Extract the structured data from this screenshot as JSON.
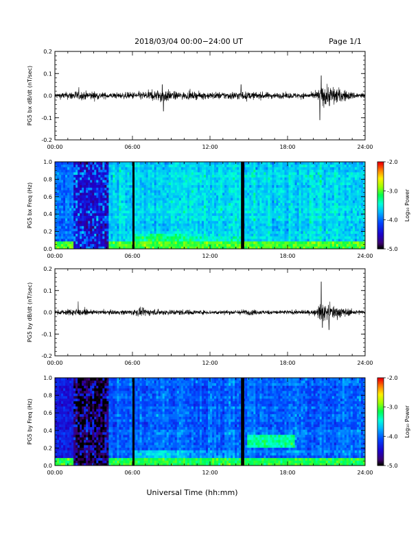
{
  "header": {
    "title": "2018/03/04  00:00−24:00 UT",
    "page_label": "Page 1/1"
  },
  "footer": {
    "xlabel": "Universal Time (hh:mm)"
  },
  "time_ticks": [
    "00:00",
    "06:00",
    "12:00",
    "18:00",
    "24:00"
  ],
  "colorbar": {
    "label": "Log₁₀ Power",
    "tick_labels": [
      "-2.0",
      "-3.0",
      "-4.0",
      "-5.0"
    ],
    "tick_values": [
      -2.0,
      -3.0,
      -4.0,
      -5.0
    ],
    "range": [
      -5.0,
      -2.0
    ]
  },
  "chart_data": [
    {
      "type": "line",
      "ylabel": "PG5 bx dB/dt (nT/sec)",
      "xlim": [
        0,
        24
      ],
      "ylim": [
        -0.2,
        0.2
      ],
      "ytick_labels": [
        "0.2",
        "0.1",
        "0.0",
        "-0.1",
        "-0.2"
      ],
      "ytick_values": [
        0.2,
        0.1,
        0.0,
        -0.1,
        -0.2
      ],
      "envelope": {
        "hours": [
          0,
          1,
          1.5,
          2,
          3,
          4,
          5,
          6,
          7,
          8,
          8.5,
          9,
          10,
          11,
          12,
          13,
          14,
          14.5,
          15,
          16,
          17,
          18,
          19,
          20,
          20.5,
          21,
          21.5,
          22,
          23,
          24
        ],
        "amplitude": [
          0.02,
          0.025,
          0.035,
          0.03,
          0.03,
          0.02,
          0.02,
          0.025,
          0.03,
          0.04,
          0.05,
          0.03,
          0.025,
          0.025,
          0.025,
          0.025,
          0.03,
          0.03,
          0.025,
          0.025,
          0.02,
          0.02,
          0.02,
          0.02,
          0.05,
          0.08,
          0.07,
          0.05,
          0.025,
          0.02
        ]
      },
      "peaks": [
        {
          "hour": 20.6,
          "value": 0.09
        },
        {
          "hour": 20.5,
          "value": -0.11
        },
        {
          "hour": 8.3,
          "value": 0.05
        },
        {
          "hour": 8.4,
          "value": -0.07
        },
        {
          "hour": 14.4,
          "value": 0.05
        }
      ]
    },
    {
      "type": "heatmap",
      "ylabel": "PG5 bx Freq (Hz)",
      "xlim": [
        0,
        24
      ],
      "ylim": [
        0.0,
        1.0
      ],
      "ytick_labels": [
        "1.0",
        "0.8",
        "0.6",
        "0.4",
        "0.2",
        "0.0"
      ],
      "ytick_values": [
        1.0,
        0.8,
        0.6,
        0.4,
        0.2,
        0.0
      ],
      "zlabel": "Log₁₀ Power",
      "zlim": [
        -5.0,
        -2.0
      ],
      "data_gaps_hours": [
        [
          6.0,
          6.15
        ],
        [
          14.4,
          14.65
        ]
      ],
      "quiet_interval_hours": [
        1.5,
        4.1
      ],
      "background_level": -3.6,
      "low_freq_enhancement": -3.0
    },
    {
      "type": "line",
      "ylabel": "PG5 by dB/dt (nT/sec)",
      "xlim": [
        0,
        24
      ],
      "ylim": [
        -0.2,
        0.2
      ],
      "ytick_labels": [
        "0.2",
        "0.1",
        "0.0",
        "-0.1",
        "-0.2"
      ],
      "ytick_values": [
        0.2,
        0.1,
        0.0,
        -0.1,
        -0.2
      ],
      "envelope": {
        "hours": [
          0,
          1,
          1.5,
          2,
          3,
          4,
          5,
          6,
          6.5,
          7,
          8,
          9,
          10,
          11,
          12,
          13,
          14,
          14.5,
          15,
          16,
          17,
          18,
          19,
          20,
          20.5,
          21,
          21.5,
          22,
          23,
          24
        ],
        "amplitude": [
          0.015,
          0.02,
          0.03,
          0.02,
          0.015,
          0.015,
          0.015,
          0.02,
          0.03,
          0.025,
          0.02,
          0.02,
          0.02,
          0.015,
          0.015,
          0.015,
          0.015,
          0.02,
          0.02,
          0.015,
          0.015,
          0.015,
          0.015,
          0.015,
          0.05,
          0.06,
          0.05,
          0.04,
          0.02,
          0.015
        ]
      },
      "peaks": [
        {
          "hour": 20.6,
          "value": 0.14
        },
        {
          "hour": 20.7,
          "value": -0.07
        },
        {
          "hour": 21.2,
          "value": -0.08
        },
        {
          "hour": 1.8,
          "value": 0.05
        }
      ]
    },
    {
      "type": "heatmap",
      "ylabel": "PG5 by Freq (Hz)",
      "xlim": [
        0,
        24
      ],
      "ylim": [
        0.0,
        1.0
      ],
      "ytick_labels": [
        "1.0",
        "0.8",
        "0.6",
        "0.4",
        "0.2",
        "0.0"
      ],
      "ytick_values": [
        1.0,
        0.8,
        0.6,
        0.4,
        0.2,
        0.0
      ],
      "zlabel": "Log₁₀ Power",
      "zlim": [
        -5.0,
        -2.0
      ],
      "data_gaps_hours": [
        [
          6.0,
          6.15
        ],
        [
          14.4,
          14.65
        ]
      ],
      "quiet_interval_hours": [
        1.5,
        4.1
      ],
      "background_level": -4.0,
      "low_freq_enhancement": -3.1,
      "feature_band": {
        "hours": [
          14.8,
          18.5
        ],
        "freq": [
          0.25,
          0.35
        ],
        "level": -3.3
      }
    }
  ]
}
